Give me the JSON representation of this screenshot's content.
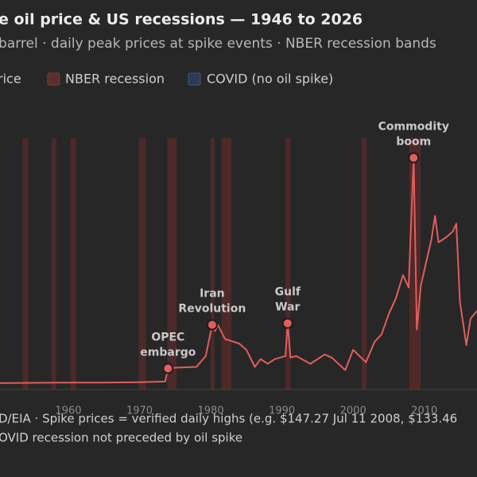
{
  "chart_data": {
    "type": "line",
    "title": "e oil price & US recessions — 1946 to 2026",
    "subtitle": "barrel · daily peak prices at spike events · NBER recession bands",
    "legend": [
      {
        "label": "rice",
        "color": "#e35d5d"
      },
      {
        "label": "NBER recession",
        "color": "#5a2f2f"
      },
      {
        "label": "COVID (no oil spike)",
        "color": "#2e3a55"
      }
    ],
    "x": [
      1950.4,
      1955,
      1960,
      1965,
      1970,
      1973.6,
      1974,
      1975,
      1978,
      1979.3,
      1980.2,
      1980.6,
      1981,
      1982,
      1984,
      1985,
      1986.2,
      1987,
      1988,
      1989,
      1990.5,
      1990.8,
      1991.2,
      1992,
      1994,
      1996,
      1997,
      1998.9,
      2000,
      2001.8,
      2003,
      2004,
      2005,
      2006,
      2007,
      2007.8,
      2008.5,
      2008.95,
      2009.5,
      2010,
      2011,
      2011.5,
      2012,
      2013,
      2014,
      2014.5,
      2015,
      2015.9,
      2016.5,
      2017.4
    ],
    "series": [
      {
        "name": "rice",
        "color": "#e35d5d",
        "values": [
          2.6,
          2.8,
          2.9,
          2.9,
          3.2,
          3.6,
          12,
          12.5,
          13,
          20,
          40,
          36,
          40,
          31,
          28,
          24,
          13,
          18,
          15,
          18,
          20,
          41,
          19,
          20,
          15,
          21,
          19,
          11,
          24,
          16,
          29,
          34,
          47,
          57,
          72,
          64,
          147.27,
          37,
          65,
          75,
          95,
          110,
          93,
          96,
          100,
          105,
          55,
          27,
          44,
          49
        ]
      }
    ],
    "recessions": [
      [
        1953.6,
        1954.4
      ],
      [
        1957.6,
        1958.3
      ],
      [
        1960.3,
        1961.1
      ],
      [
        1969.9,
        1970.9
      ],
      [
        1973.9,
        1975.2
      ],
      [
        1980.0,
        1980.5
      ],
      [
        1981.5,
        1982.9
      ],
      [
        1990.5,
        1991.2
      ],
      [
        2001.2,
        2001.9
      ],
      [
        2007.9,
        2009.5
      ]
    ],
    "annotations": [
      {
        "lines": [
          "OPEC",
          "embargo"
        ],
        "x": 1974,
        "value": 12
      },
      {
        "lines": [
          "Iran",
          "Revolution"
        ],
        "x": 1980.2,
        "value": 40
      },
      {
        "lines": [
          "Gulf",
          "War"
        ],
        "x": 1990.8,
        "value": 41
      },
      {
        "lines": [
          "Commodity",
          "boom"
        ],
        "x": 2008.5,
        "value": 147.27
      }
    ],
    "xlim": [
      1950.4,
      2017.4
    ],
    "xticks": [
      1960,
      1970,
      1980,
      1990,
      2000,
      2010
    ],
    "ylim": [
      0,
      160
    ],
    "footer": [
      "D/EIA · Spike prices = verified daily highs (e.g. $147.27 Jul 11 2008, $133.46",
      "OVID recession not preceded by oil spike"
    ]
  }
}
